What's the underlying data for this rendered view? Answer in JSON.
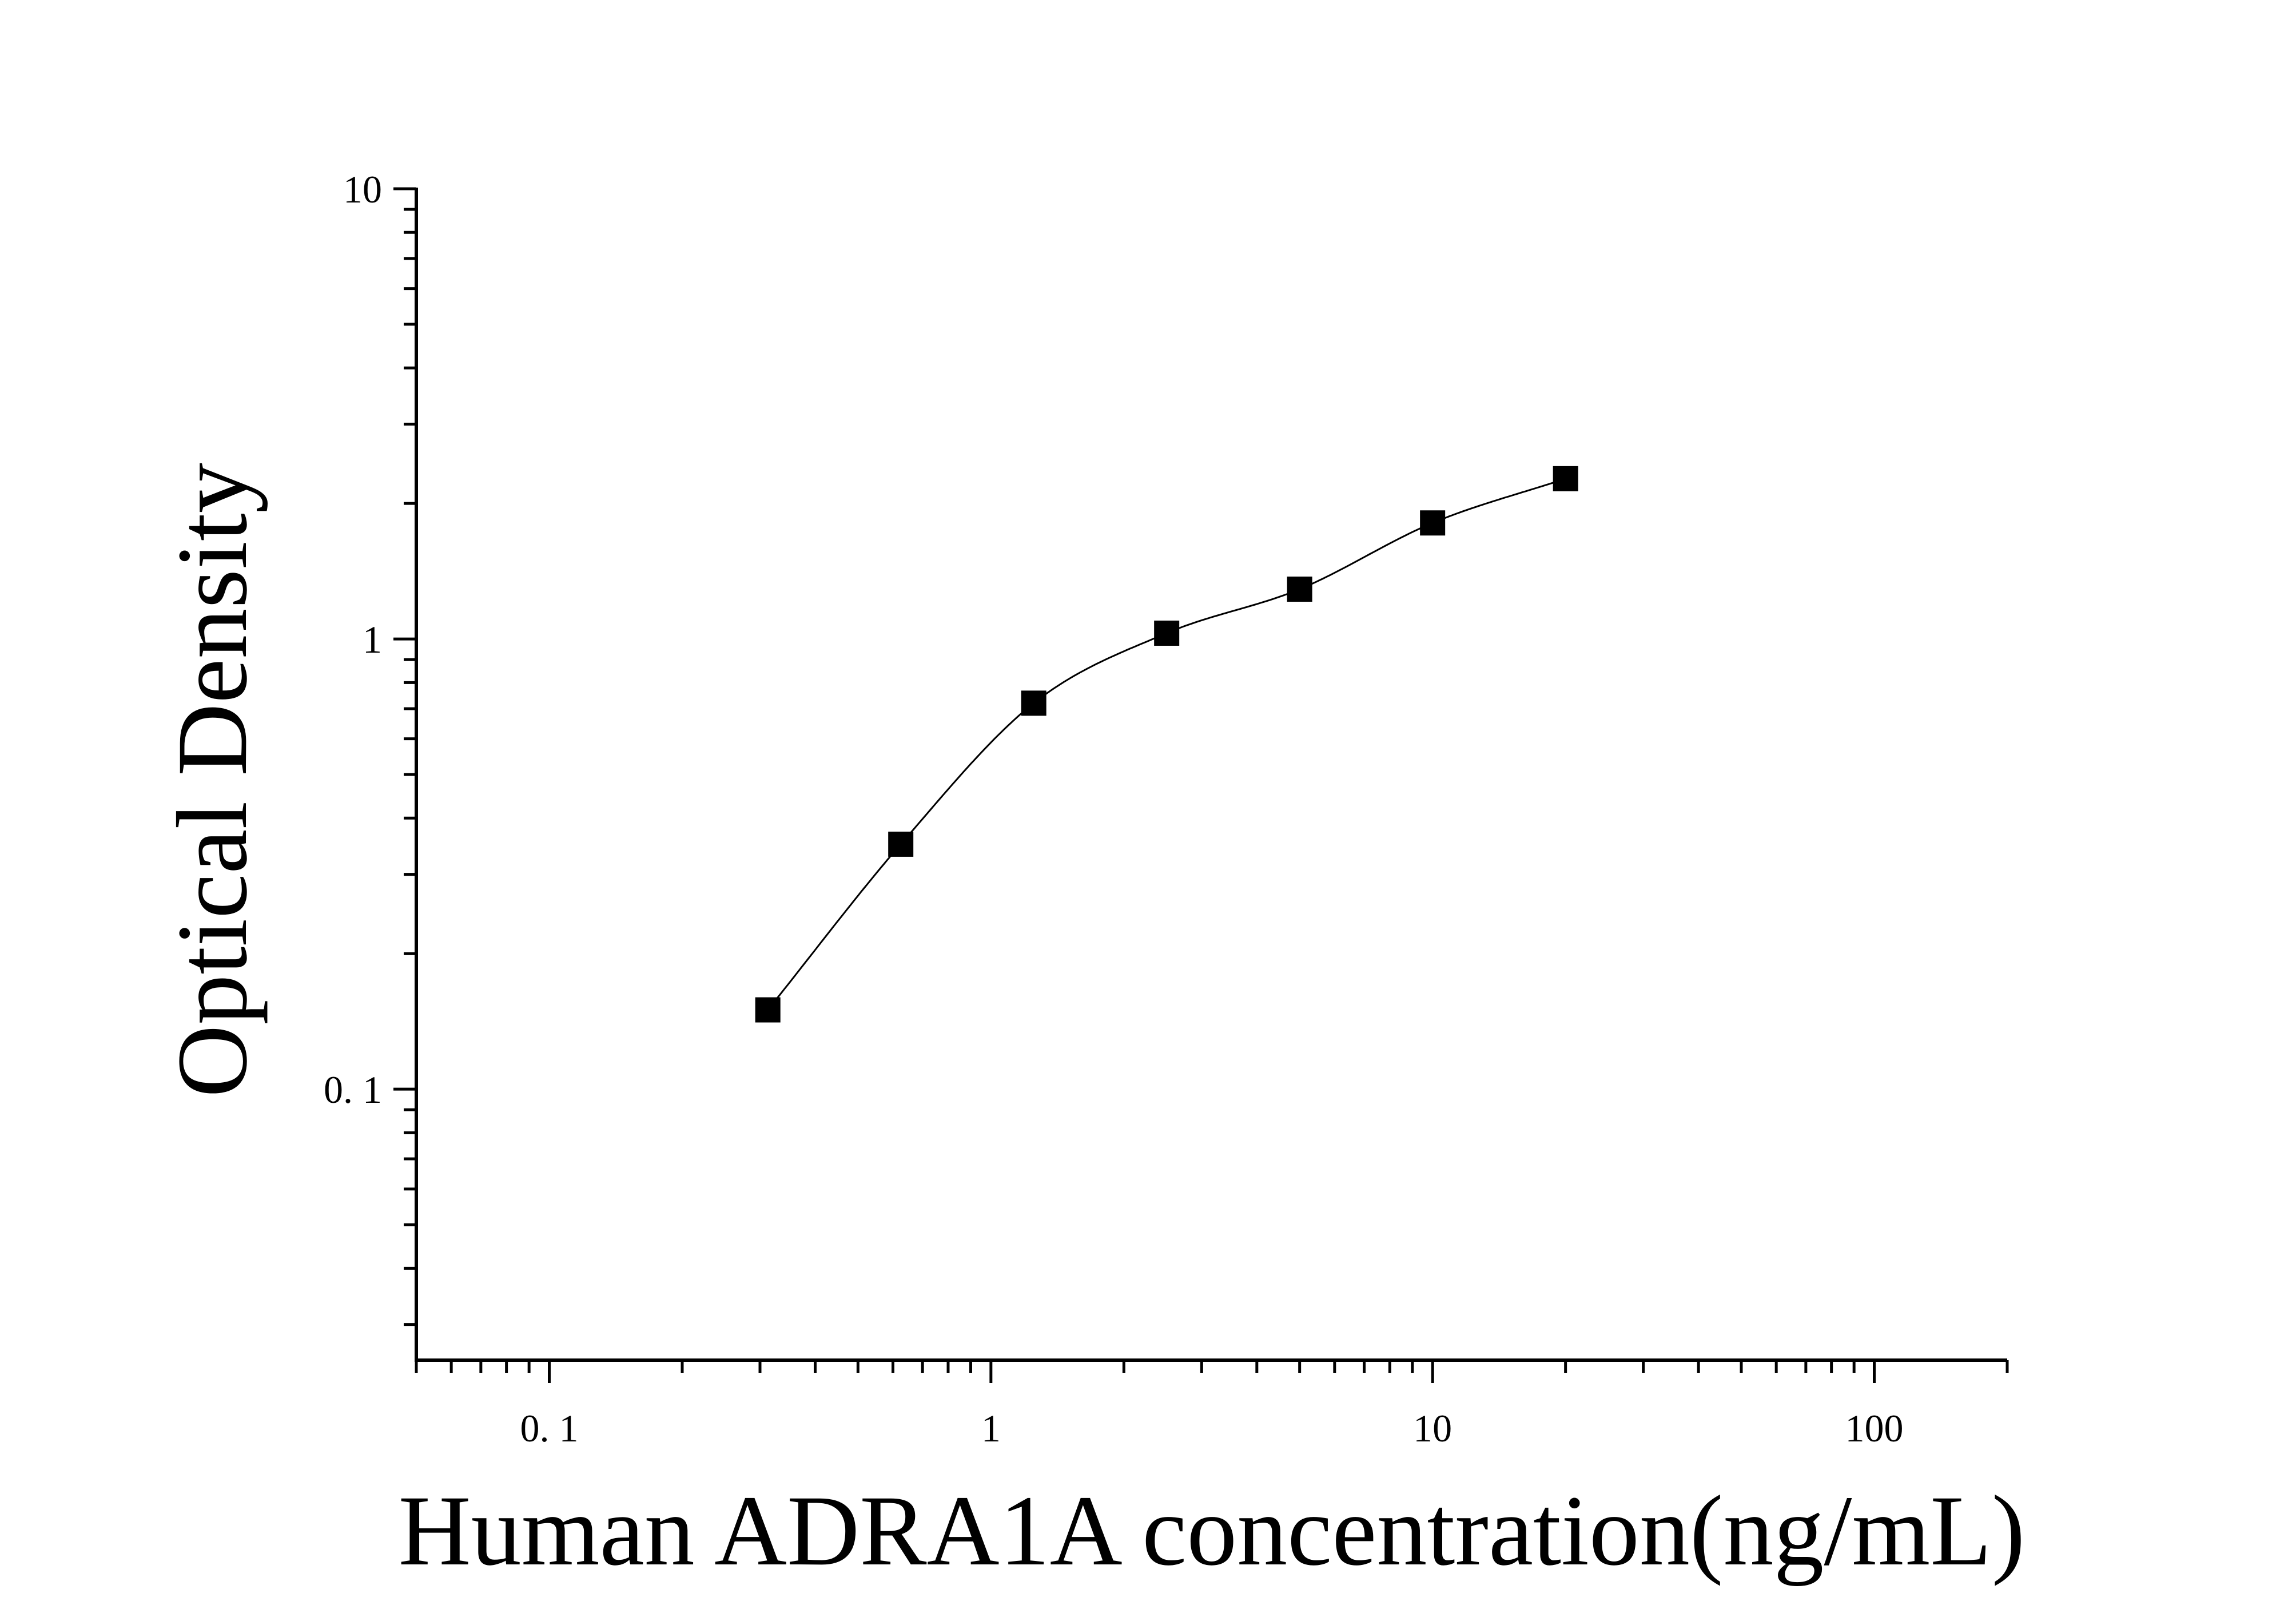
{
  "chart_data": {
    "type": "scatter",
    "title": "",
    "xlabel": "Human ADRA1A concentration(ng/mL)",
    "ylabel": "Optical Density",
    "x_scale": "log",
    "y_scale": "log",
    "xlim": [
      0.05,
      200
    ],
    "ylim": [
      0.025,
      10
    ],
    "x_ticks": [
      {
        "value": 0.1,
        "label": "0. 1"
      },
      {
        "value": 1,
        "label": "1"
      },
      {
        "value": 10,
        "label": "10"
      },
      {
        "value": 100,
        "label": "100"
      }
    ],
    "y_ticks": [
      {
        "value": 0.1,
        "label": "0. 1"
      },
      {
        "value": 1,
        "label": "1"
      },
      {
        "value": 10,
        "label": "10"
      }
    ],
    "grid": false,
    "legend": "none",
    "series": [
      {
        "marker": "square",
        "color": "#000000",
        "x": [
          0.3125,
          0.625,
          1.25,
          2.5,
          5,
          10,
          20
        ],
        "y": [
          0.15,
          0.35,
          0.72,
          1.03,
          1.29,
          1.81,
          2.27
        ],
        "fit_curve": true
      }
    ]
  }
}
